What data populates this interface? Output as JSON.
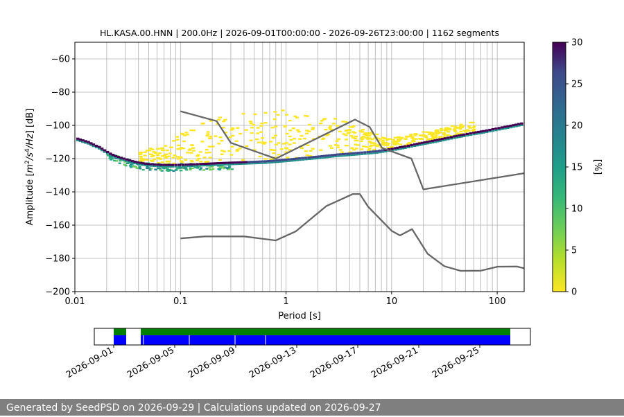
{
  "chart_data": {
    "type": "heatmap",
    "title": "HL.KASA.00.HNN | 200.0Hz | 2026-09-01T00:00:00 - 2026-09-26T23:00:00 | 1162 segments",
    "xlabel": "Period [s]",
    "ylabel_prefix": "Amplitude [",
    "ylabel_m": "m",
    "ylabel_sup2": "2",
    "ylabel_mid": "/s",
    "ylabel_sup4": "4",
    "ylabel_suffix": "/Hz] [dB]",
    "xscale": "log",
    "xlim": [
      0.01,
      180
    ],
    "ylim": [
      -200,
      -50
    ],
    "x_ticks": [
      {
        "value": 0.01,
        "label": "0.01"
      },
      {
        "value": 0.1,
        "label": "0.1"
      },
      {
        "value": 1,
        "label": "1"
      },
      {
        "value": 10,
        "label": "10"
      },
      {
        "value": 100,
        "label": "100"
      }
    ],
    "y_ticks": [
      {
        "value": -60,
        "label": "−60"
      },
      {
        "value": -80,
        "label": "−80"
      },
      {
        "value": -100,
        "label": "−100"
      },
      {
        "value": -120,
        "label": "−120"
      },
      {
        "value": -140,
        "label": "−140"
      },
      {
        "value": -160,
        "label": "−160"
      },
      {
        "value": -180,
        "label": "−180"
      },
      {
        "value": -200,
        "label": "−200"
      }
    ],
    "colorbar": {
      "label": "[%]",
      "range": [
        0,
        30
      ],
      "ticks": [
        "0",
        "5",
        "10",
        "15",
        "20",
        "25",
        "30"
      ],
      "colormap": "viridis-reversed"
    },
    "psd_mode": {
      "periods": [
        0.0103,
        0.0115,
        0.013,
        0.0145,
        0.0165,
        0.0185,
        0.021,
        0.0235,
        0.0265,
        0.03,
        0.034,
        0.038,
        0.043,
        0.048,
        0.055,
        0.063,
        0.072,
        0.082,
        0.095,
        0.11,
        0.13,
        0.15,
        0.18,
        0.21,
        0.25,
        0.3,
        0.36,
        0.43,
        0.52,
        0.62,
        0.75,
        0.9,
        1.1,
        1.3,
        1.6,
        2.0,
        2.5,
        3.0,
        3.8,
        4.7,
        5.8,
        7.0,
        8.5,
        10.5,
        13,
        16,
        20,
        25,
        31,
        38,
        47,
        58,
        72,
        88,
        108,
        130,
        155,
        175
      ],
      "db": [
        -108,
        -109,
        -110,
        -111.5,
        -113,
        -115,
        -117,
        -118.5,
        -119.5,
        -120.5,
        -121.5,
        -122.2,
        -122.8,
        -123.2,
        -123.5,
        -123.7,
        -123.8,
        -123.8,
        -123.7,
        -123.6,
        -123.4,
        -123.2,
        -123,
        -122.8,
        -122.6,
        -122.4,
        -122.2,
        -122,
        -121.8,
        -121.6,
        -121.2,
        -120.8,
        -120.3,
        -119.8,
        -119.3,
        -118.7,
        -118,
        -117.5,
        -117,
        -116.5,
        -116,
        -115.5,
        -114.7,
        -113.7,
        -112.6,
        -111.4,
        -110.2,
        -109,
        -107.8,
        -106.6,
        -105.5,
        -104.4,
        -103.4,
        -102.3,
        -101.2,
        -100.2,
        -99.2,
        -98.5
      ]
    },
    "reference_curves": [
      {
        "periods": [
          0.1,
          0.22,
          0.3,
          0.8,
          4.5,
          6.2,
          8.1,
          15.4,
          20,
          180
        ],
        "db": [
          -91.5,
          -97.4,
          -110.5,
          -120,
          -96.5,
          -101,
          -113.5,
          -120,
          -138.5,
          -128.8
        ]
      },
      {
        "periods": [
          0.1,
          0.17,
          0.4,
          0.8,
          1.24,
          2.4,
          4.3,
          5.0,
          6.0,
          10,
          12,
          15.6,
          21.9,
          31.6,
          45,
          70,
          101,
          154,
          180
        ],
        "db": [
          -168,
          -166.8,
          -166.8,
          -169.2,
          -163.7,
          -148.6,
          -141.3,
          -141.3,
          -149,
          -163.4,
          -166.2,
          -162.4,
          -177.2,
          -184.7,
          -187.5,
          -187.4,
          -185,
          -184.9,
          -186
        ]
      }
    ],
    "scatter_band": {
      "period_min": 0.04,
      "period_max": 60,
      "db_min": -124,
      "db_max": -90
    }
  },
  "timeline": {
    "ticks": [
      "2026-09-01",
      "2026-09-05",
      "2026-09-09",
      "2026-09-13",
      "2026-09-17",
      "2026-09-21",
      "2026-09-25"
    ],
    "start": "2026-09-01",
    "end": "2026-09-26T23:00:00",
    "colors": {
      "available": "#0000ff",
      "segments": "#008000"
    }
  },
  "footer": {
    "text": "Generated by SeedPSD on 2026-09-29 | Calculations updated on 2026-09-27"
  }
}
